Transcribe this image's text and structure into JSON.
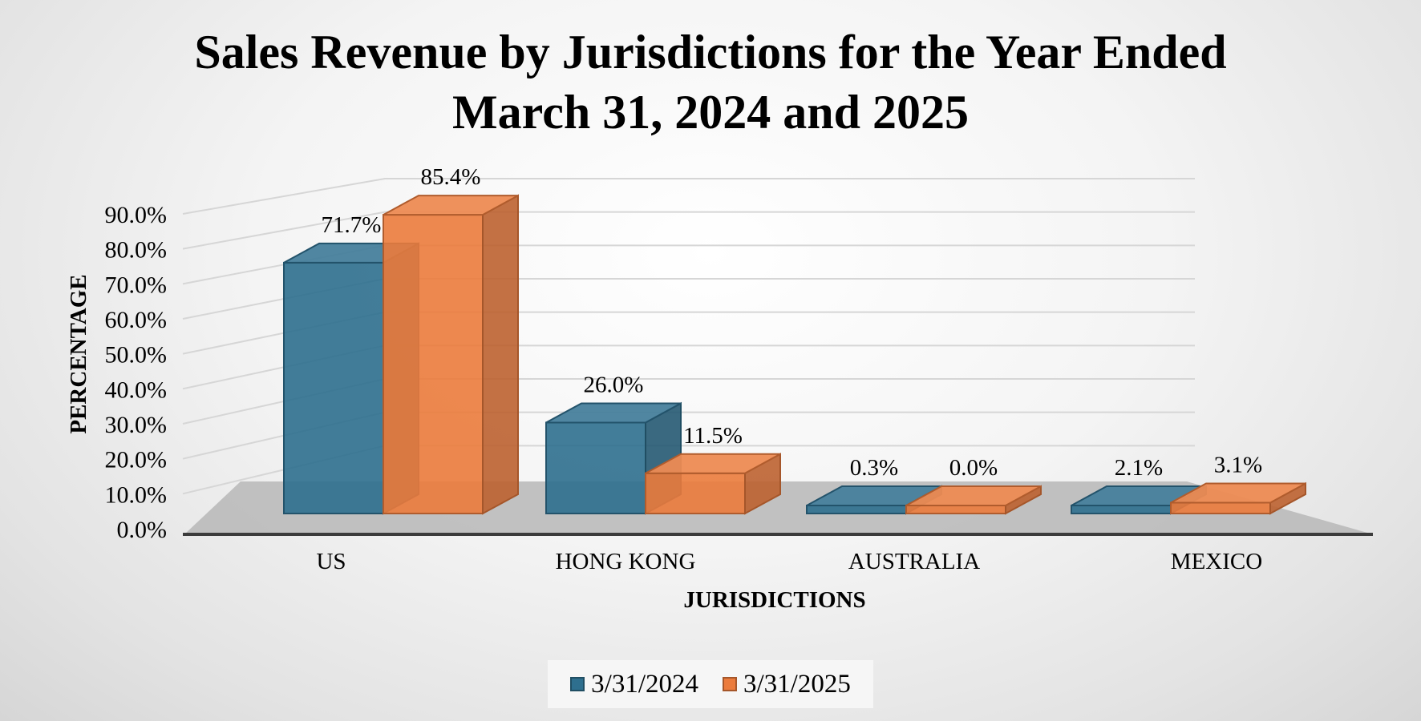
{
  "chart_data": {
    "type": "bar",
    "style": "3d-clustered-column",
    "title": "Sales Revenue by Jurisdictions for the Year Ended March 31, 2024 and 2025",
    "title_lines": [
      "Sales Revenue by Jurisdictions for the Year Ended",
      "March 31, 2024 and 2025"
    ],
    "xlabel": "JURISDICTIONS",
    "ylabel": "PERCENTAGE",
    "categories": [
      "US",
      "HONG KONG",
      "AUSTRALIA",
      "MEXICO"
    ],
    "series": [
      {
        "name": "3/31/2024",
        "values": [
          71.7,
          26.0,
          0.3,
          2.1
        ],
        "labels": [
          "71.7%",
          "26.0%",
          "0.3%",
          "2.1%"
        ],
        "color": "#2E6F8E"
      },
      {
        "name": "3/31/2025",
        "values": [
          85.4,
          11.5,
          0.0,
          3.1
        ],
        "labels": [
          "85.4%",
          "11.5%",
          "0.0%",
          "3.1%"
        ],
        "color": "#EB7B3C"
      }
    ],
    "yticks": [
      "0.0%",
      "10.0%",
      "20.0%",
      "30.0%",
      "40.0%",
      "50.0%",
      "60.0%",
      "70.0%",
      "80.0%",
      "90.0%"
    ],
    "ylim": [
      0,
      90
    ],
    "grid": true,
    "legend_position": "bottom"
  }
}
